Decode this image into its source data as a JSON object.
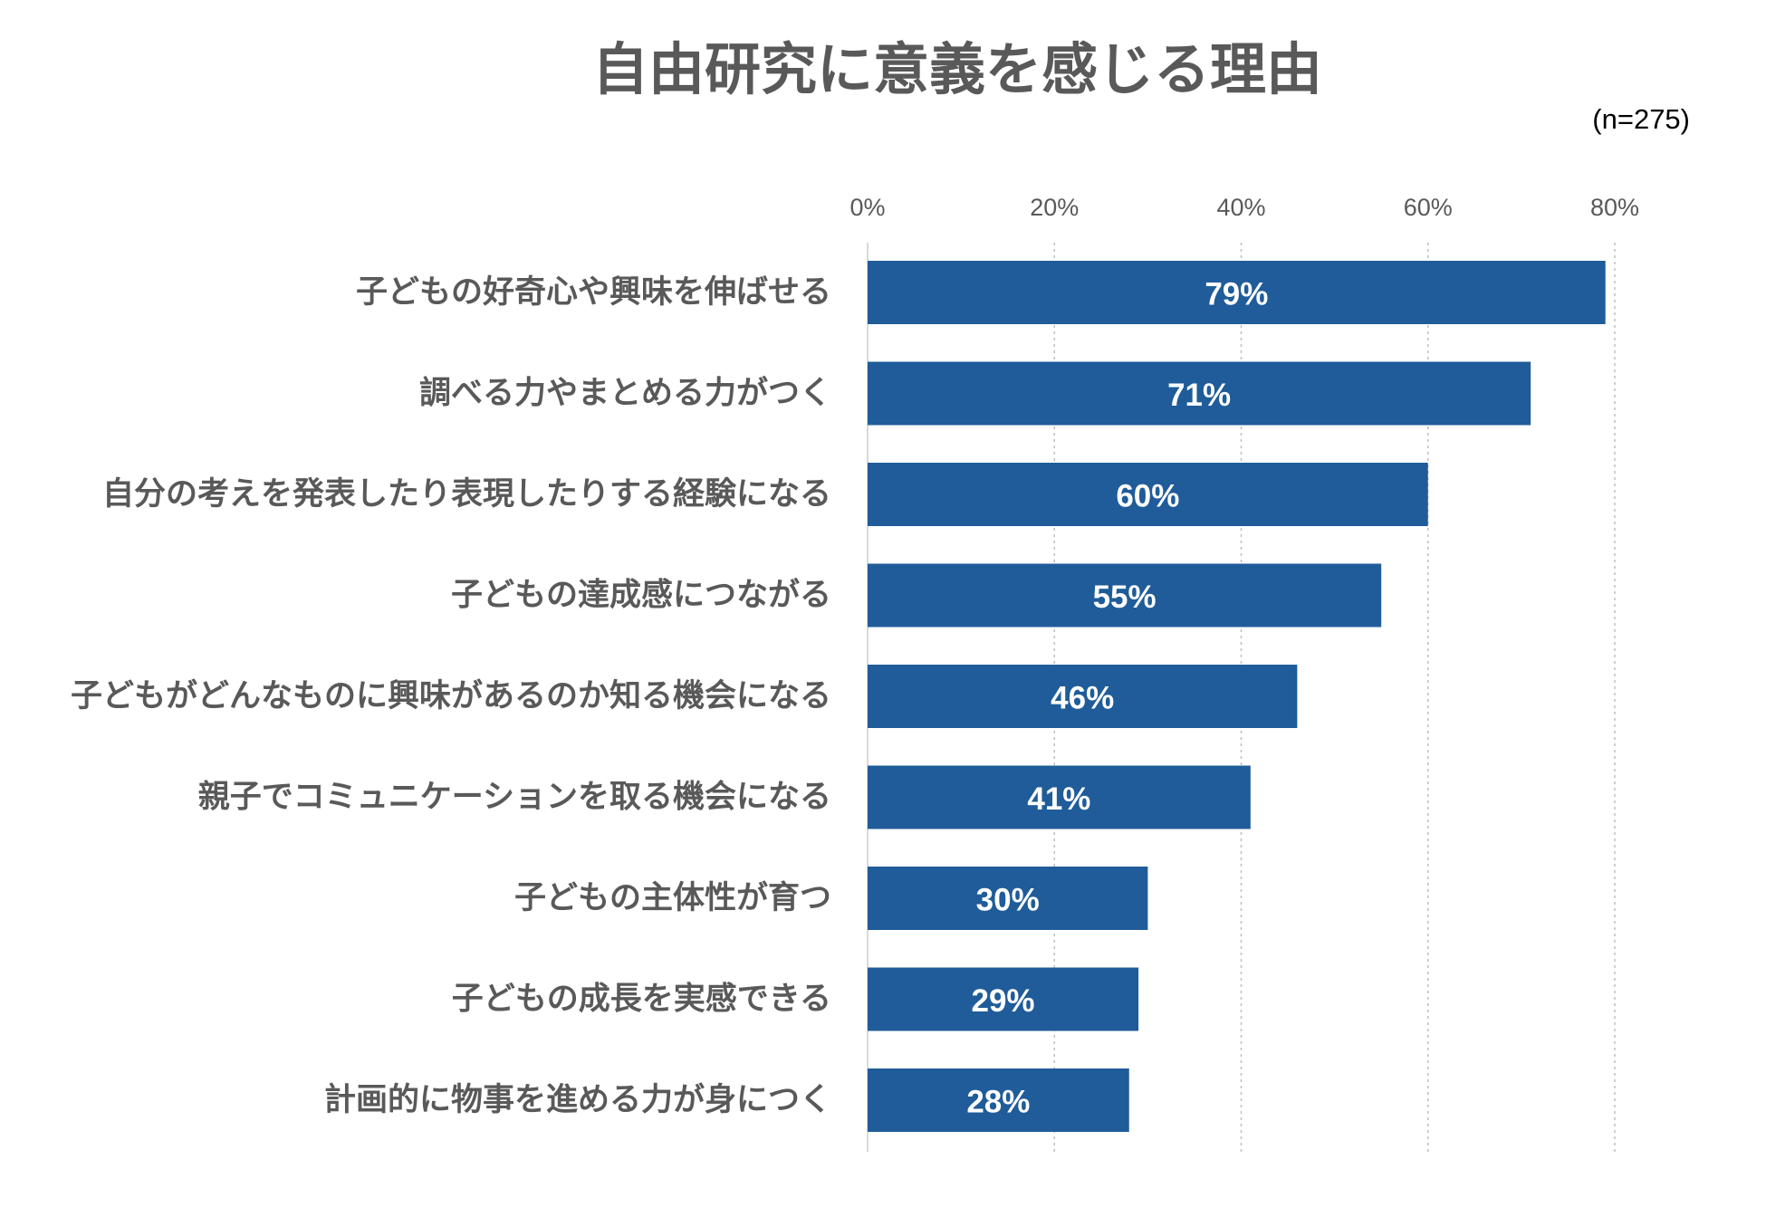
{
  "chart_data": {
    "type": "bar",
    "orientation": "horizontal",
    "title": "自由研究に意義を感じる理由",
    "note": "(n=275)",
    "categories": [
      "子どもの好奇心や興味を伸ばせる",
      "調べる力やまとめる力がつく",
      "自分の考えを発表したり表現したりする経験になる",
      "子どもの達成感につながる",
      "子どもがどんなものに興味があるのか知る機会になる",
      "親子でコミュニケーションを取る機会になる",
      "子どもの主体性が育つ",
      "子どもの成長を実感できる",
      "計画的に物事を進める力が身につく"
    ],
    "values": [
      79,
      71,
      60,
      55,
      46,
      41,
      30,
      29,
      28
    ],
    "value_labels": [
      "79%",
      "71%",
      "60%",
      "55%",
      "46%",
      "41%",
      "30%",
      "29%",
      "28%"
    ],
    "xlim": [
      0,
      80
    ],
    "ticks": [
      0,
      20,
      40,
      60,
      80
    ],
    "tick_labels": [
      "0%",
      "20%",
      "40%",
      "60%",
      "80%"
    ],
    "xlabel": "",
    "ylabel": "",
    "grid": true,
    "tick_position": "top",
    "legend": "none",
    "bar_color": "#1f5c99"
  }
}
